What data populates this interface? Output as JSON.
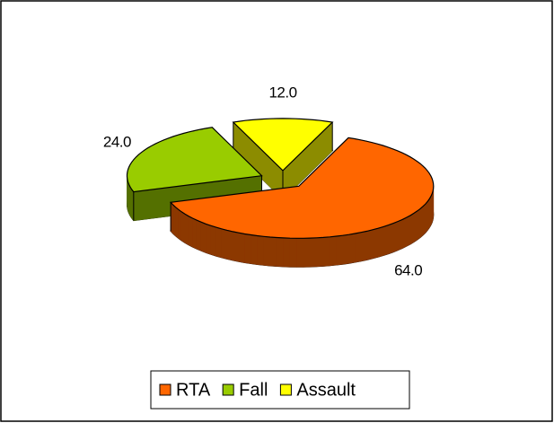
{
  "chart_data": {
    "type": "pie",
    "categories": [
      "RTA",
      "Fall",
      "Assault"
    ],
    "values": [
      64,
      24,
      12
    ],
    "value_labels": [
      "64.0",
      "24.0",
      "12.0"
    ],
    "colors": [
      "#ff6600",
      "#99cc00",
      "#ffff00"
    ],
    "legend": "bottom"
  }
}
